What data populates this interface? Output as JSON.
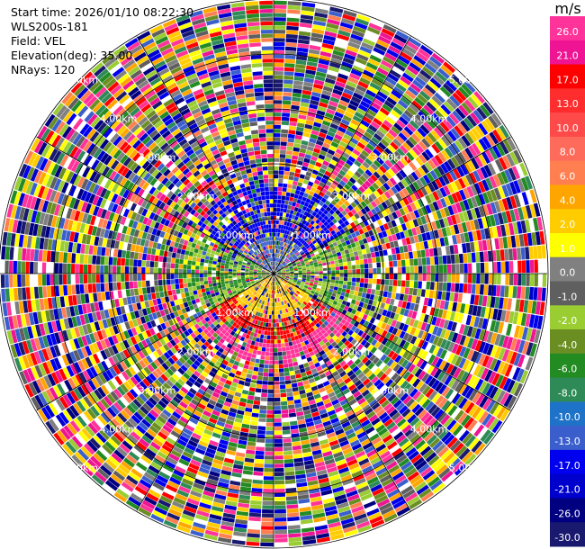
{
  "info": {
    "start_time": "Start time: 2026/01/10 08:22:30",
    "instrument": "WLS200s-181",
    "field": "Field: VEL",
    "elevation": "Elevation(deg): 35.00",
    "nrays": "NRays: 120"
  },
  "range_labels": [
    "1.00km",
    "2.00km",
    "3.00km",
    "4.00km",
    "5.00km"
  ],
  "colorbar": {
    "unit": "m/s",
    "ticks": [
      "26.0",
      "21.0",
      "17.0",
      "13.0",
      "10.0",
      "8.0",
      "6.0",
      "4.0",
      "2.0",
      "1.0",
      "0.0",
      "-1.0",
      "-2.0",
      "-4.0",
      "-6.0",
      "-8.0",
      "-10.0",
      "-13.0",
      "-17.0",
      "-21.0",
      "-26.0",
      "-30.0"
    ],
    "colors": [
      "#ff3399",
      "#ee1493",
      "#ff0000",
      "#ff2d2d",
      "#ff4a4a",
      "#ff6b5a",
      "#ff7f50",
      "#ffa500",
      "#ffcc00",
      "#ffff00",
      "#808080",
      "#5f5f5f",
      "#9acd32",
      "#6b8e23",
      "#228b22",
      "#2e8b57",
      "#1e72c8",
      "#3a5fcd",
      "#0000ee",
      "#0000cd",
      "#000080",
      "#191970"
    ]
  }
}
